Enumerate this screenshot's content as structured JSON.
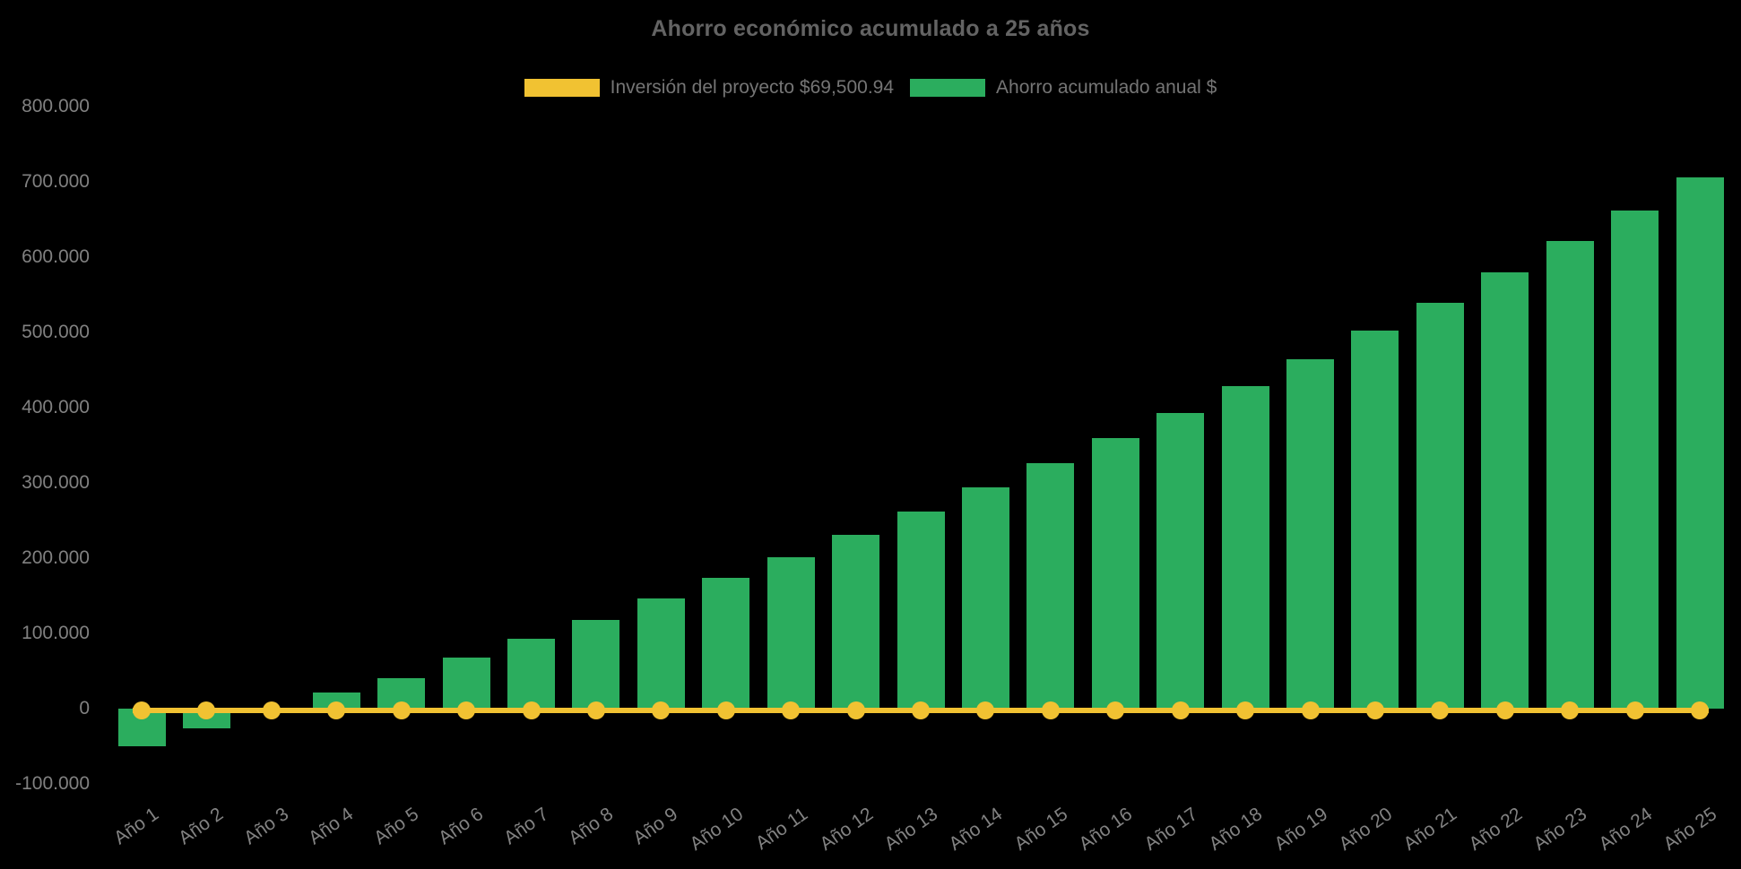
{
  "chart_data": {
    "type": "bar",
    "title": "Ahorro económico acumulado a 25 años",
    "background_color": "#000000",
    "grid": "off",
    "legend_position": "top-center",
    "categories": [
      "Año 1",
      "Año 2",
      "Año 3",
      "Año 4",
      "Año 5",
      "Año 6",
      "Año 7",
      "Año 8",
      "Año 9",
      "Año 10",
      "Año 11",
      "Año 12",
      "Año 13",
      "Año 14",
      "Año 15",
      "Año 16",
      "Año 17",
      "Año 18",
      "Año 19",
      "Año 20",
      "Año 21",
      "Año 22",
      "Año 23",
      "Año 24",
      "Año 25"
    ],
    "series": [
      {
        "name": "Inversión del proyecto $69,500.94",
        "type": "line",
        "color": "#F1C232",
        "marker": "circle",
        "stated_value": "$69,500.94",
        "plotted_values": [
          0,
          0,
          0,
          0,
          0,
          0,
          0,
          0,
          0,
          0,
          0,
          0,
          0,
          0,
          0,
          0,
          0,
          0,
          0,
          0,
          0,
          0,
          0,
          0,
          0
        ]
      },
      {
        "name": "Ahorro acumulado anual $",
        "type": "bar",
        "color": "#2BAD5E",
        "values": [
          -50000,
          -26500,
          -2000,
          21000,
          40500,
          68000,
          93000,
          118000,
          146500,
          174000,
          201000,
          231000,
          262000,
          294000,
          326000,
          359500,
          393000,
          428500,
          464500,
          502500,
          539500,
          580000,
          621500,
          662000,
          706000
        ]
      }
    ],
    "y_axis": {
      "range": [
        -100000,
        800000
      ],
      "tick_values": [
        800000,
        700000,
        600000,
        500000,
        400000,
        300000,
        200000,
        100000,
        0,
        -100000
      ],
      "tick_labels": [
        "800.000",
        "700.000",
        "600.000",
        "500.000",
        "400.000",
        "300.000",
        "200.000",
        "100.000",
        "0",
        "-100.000"
      ]
    },
    "x_axis": {
      "label_rotation_deg": -35
    },
    "colors": {
      "bar_green": "#2BAD5E",
      "line_yellow": "#F1C232",
      "title_text": "#636363",
      "axis_text": "#818181",
      "legend_text": "#757575"
    }
  }
}
